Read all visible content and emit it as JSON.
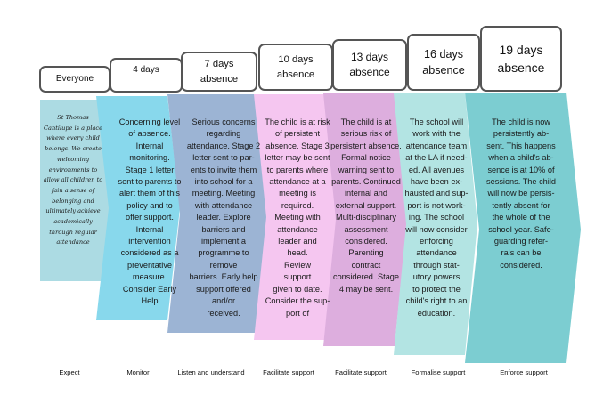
{
  "stages": [
    {
      "header": "Everyone",
      "body": "St Thomas Cantilupe is a place where every child belongs. We create welcoming environments to allow all children to fain a sense of belonging and ultimately achieve academically through regular attendance",
      "footer": "Expect",
      "color": "#acdbe3"
    },
    {
      "header": "4 days",
      "body": "Concerning level\nof absence.\nInternal\nmonitoring.\nStage 1 letter\nsent to parents to\nalert them of this\npolicy and to\noffer support.\nInternal\nintervention\nconsidered as a\npreventative\nmeasure.\nConsider Early\nHelp",
      "footer": "Monitor",
      "color": "#88d8ec"
    },
    {
      "header": "7 days\nabsence",
      "body": "Serious concerns\nregarding\nattendance. Stage 2\nletter sent to par-\nents to invite them\ninto school for a\nmeeting.  Meeting\nwith attendance\nleader. Explore\nbarriers and\nimplement a\nprogramme to\nremove\nbarriers. Early help\nsupport offered\nand/or\nreceived.",
      "footer": "Listen and understand",
      "color": "#9cb4d4"
    },
    {
      "header": "10 days\nabsence",
      "body": "The child is at risk\nof persistent\nabsence. Stage 3\nletter may be sent\nto parents where\nattendance at a\nmeeting is\nrequired.\nMeeting with\nattendance\nleader and\nhead.\nReview\nsupport\ngiven to date.\nConsider the sup-\nport of",
      "footer": "Facilitate support",
      "color": "#f5c6f0"
    },
    {
      "header": "13 days\nabsence",
      "body": "The child is at\nserious risk of\npersistent absence.\nFormal notice\nwarning sent to\nparents. Continued\ninternal and\nexternal support.\nMulti-disciplinary\nassessment\nconsidered.\nParenting\ncontract\nconsidered. Stage\n4 may be sent.",
      "footer": "Facilitate support",
      "color": "#ddaede"
    },
    {
      "header": "16 days\nabsence",
      "body": "The school will\nwork with the\nattendance team\nat the LA if need-\ned. All avenues\nhave been ex-\nhausted and sup-\nport is not work-\ning. The school\nwill now consider\nenforcing\nattendance\nthrough stat-\nutory powers\nto protect the\nchild's right to an\neducation.",
      "footer": "Formalise support",
      "color": "#b3e4e3"
    },
    {
      "header": "19 days\nabsence",
      "body": "The child is now\npersistently ab-\nsent. This happens\nwhen a child's ab-\nsence is at 10% of\nsessions. The child\nwill now be persis-\ntently absent for\nthe whole of the\nschool year. Safe-\nguarding refer-\nrals can be\nconsidered.",
      "footer": "Enforce support",
      "color": "#7ccdd1"
    }
  ]
}
